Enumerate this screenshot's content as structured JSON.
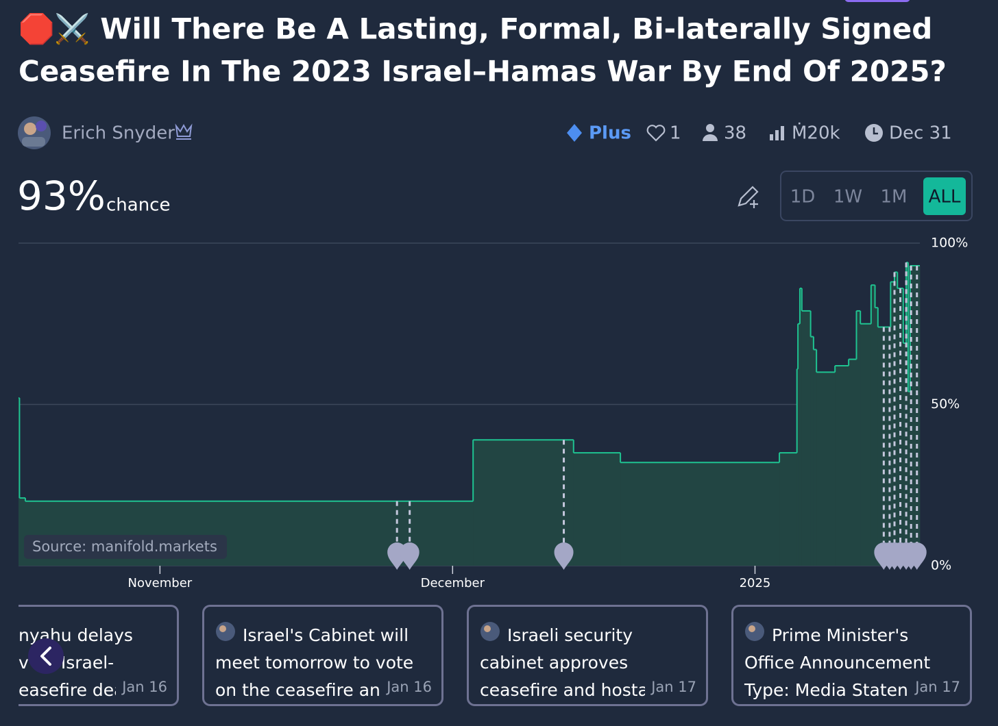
{
  "title_lines": [
    "🛑⚔️ Will There Be A Lasting, Formal, Bi-laterally Signed",
    "Ceasefire In The 2023 Israel–Hamas War By End Of 2025?"
  ],
  "author": "Erich Snyder",
  "stats": {
    "plus": "Plus",
    "likes": "1",
    "traders": "38",
    "volume": "Ṁ20k",
    "close": "Dec 31"
  },
  "probability": {
    "value": "93%",
    "label": "chance"
  },
  "time_buttons": [
    "1D",
    "1W",
    "1M",
    "ALL"
  ],
  "source": "Source: manifold.markets",
  "chart_data": {
    "type": "step-area",
    "x": [
      -14.5,
      -14.4,
      -13.8,
      32.1,
      42.4,
      47.2,
      63.5,
      65.3,
      65.4,
      65.6,
      65.8,
      66.7,
      67.0,
      67.3,
      69.2,
      70.6,
      71.4,
      71.8,
      72.9,
      73.3,
      73.6,
      74.9,
      75.3,
      75.6,
      76.2,
      76.5,
      76.7,
      76.9
    ],
    "values": [
      52,
      21,
      20,
      39,
      35,
      32,
      35,
      61,
      75,
      86,
      79,
      71,
      67,
      60,
      62,
      64,
      79,
      75,
      87,
      80,
      74,
      88,
      91,
      86,
      69,
      94,
      54,
      93
    ],
    "color": "#1fc391",
    "xlim": [
      -14.5,
      77.9
    ],
    "ylim": [
      0,
      100
    ],
    "xticks": [
      {
        "value": 0,
        "label": "November"
      },
      {
        "value": 30,
        "label": "December"
      },
      {
        "value": 61,
        "label": "2025"
      }
    ],
    "yticks": [
      {
        "value": 0,
        "label": "0%"
      },
      {
        "value": 50,
        "label": "50%"
      },
      {
        "value": 100,
        "label": "100%"
      }
    ],
    "grid": true,
    "event_markers": [
      24.3,
      25.6,
      41.4,
      74.2,
      74.8,
      75.3,
      75.9,
      76.5,
      77.0,
      77.6
    ]
  },
  "news": [
    {
      "lines": [
        "nyahu delays",
        "v     on Israel-",
        "easefire dea"
      ],
      "date": "Jan 16"
    },
    {
      "lines": [
        "Israel's Cabinet will",
        "meet tomorrow to vote",
        "on the ceasefire an"
      ],
      "date": "Jan 16"
    },
    {
      "lines": [
        "Israeli security",
        "cabinet approves",
        "ceasefire and hosta"
      ],
      "date": "Jan 17"
    },
    {
      "lines": [
        "Prime Minister's",
        "Office Announcement",
        "Type: Media Staten"
      ],
      "date": "Jan 17"
    }
  ]
}
